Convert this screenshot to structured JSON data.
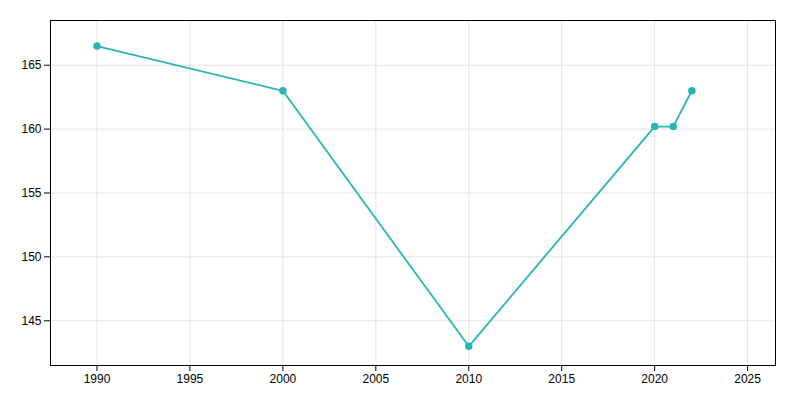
{
  "chart_data": {
    "type": "line",
    "x": [
      1990,
      2000,
      2010,
      2020,
      2021,
      2022
    ],
    "values": [
      166.5,
      163,
      143,
      160.2,
      160.2,
      163
    ],
    "color": "#2ab5b5",
    "marker": "circle",
    "xlim": [
      1987.5,
      2026.5
    ],
    "ylim": [
      141.5,
      168.5
    ],
    "xticks": [
      1990,
      1995,
      2000,
      2005,
      2010,
      2015,
      2020,
      2025
    ],
    "yticks": [
      145,
      150,
      155,
      160,
      165
    ],
    "grid": true
  }
}
